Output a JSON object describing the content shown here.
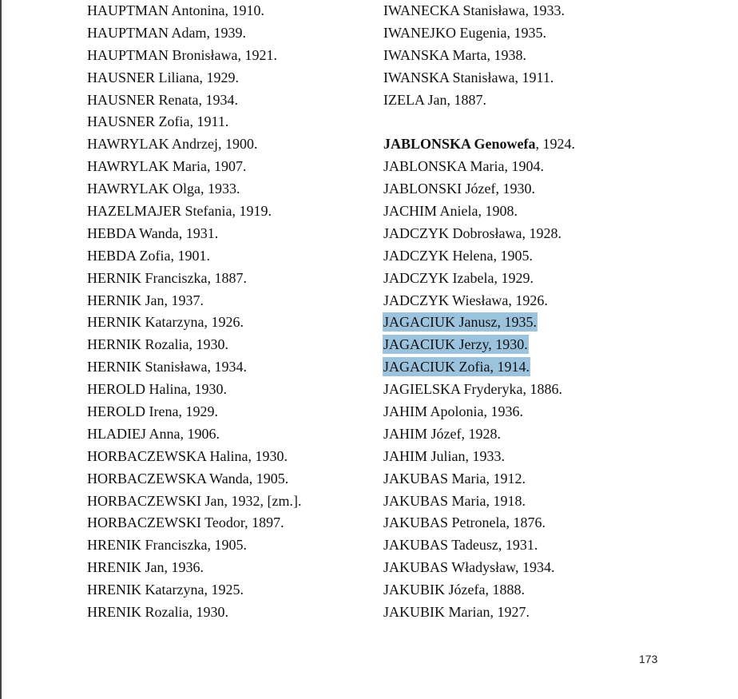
{
  "left_column": [
    "HAUPTMAN Antonina, 1910.",
    "HAUPTMAN Adam, 1939.",
    "HAUPTMAN Bronisława, 1921.",
    "HAUSNER Liliana, 1929.",
    "HAUSNER Renata, 1934.",
    "HAUSNER Zofia, 1911.",
    "HAWRYLAK Andrzej, 1900.",
    "HAWRYLAK Maria, 1907.",
    "HAWRYLAK Olga, 1933.",
    "HAZELMAJER Stefania, 1919.",
    "HEBDA Wanda, 1931.",
    "HEBDA Zofia, 1901.",
    "HERNIK Franciszka, 1887.",
    "HERNIK Jan, 1937.",
    "HERNIK Katarzyna, 1926.",
    "HERNIK Rozalia, 1930.",
    "HERNIK Stanisława, 1934.",
    "HEROLD Halina, 1930.",
    "HEROLD Irena, 1929.",
    "HLADIEJ Anna, 1906.",
    "HORBACZEWSKA Halina, 1930.",
    "HORBACZEWSKA Wanda, 1905.",
    "HORBACZEWSKI Jan, 1932, [zm.].",
    "HORBACZEWSKI Teodor, 1897.",
    "HRENIK Franciszka, 1905.",
    "HRENIK Jan, 1936.",
    "HRENIK Katarzyna, 1925.",
    "HRENIK Rozalia, 1930."
  ],
  "right_column": [
    {
      "text": "IWANECKA Stanisława, 1933."
    },
    {
      "text": "IWANEJKO Eugenia, 1935."
    },
    {
      "text": "IWANSKA Marta, 1938."
    },
    {
      "text": "IWANSKA Stanisława, 1911."
    },
    {
      "text": "IZELA Jan, 1887."
    },
    {
      "text": ""
    },
    {
      "bold": "JABLONSKA Genowefa",
      "text": ", 1924."
    },
    {
      "text": "JABLONSKA Maria, 1904."
    },
    {
      "text": "JABLONSKI Józef, 1930."
    },
    {
      "text": "JACHIM Aniela, 1908."
    },
    {
      "text": "JADCZYK Dobrosława, 1928."
    },
    {
      "text": "JADCZYK Helena, 1905."
    },
    {
      "text": "JADCZYK Izabela, 1929."
    },
    {
      "text": "JADCZYK Wiesława, 1926."
    },
    {
      "text": "JAGACIUK Janusz, 1935.",
      "highlighted": true
    },
    {
      "text": "JAGACIUK Jerzy, 1930.",
      "highlighted": true
    },
    {
      "text": "JAGACIUK Zofia, 1914.",
      "highlighted": true
    },
    {
      "text": "JAGIELSKA Fryderyka, 1886."
    },
    {
      "text": "JAHIM Apolonia, 1936."
    },
    {
      "text": "JAHIM Józef, 1928."
    },
    {
      "text": "JAHIM Julian, 1933."
    },
    {
      "text": "JAKUBAS Maria, 1912."
    },
    {
      "text": "JAKUBAS Maria, 1918."
    },
    {
      "text": "JAKUBAS Petronela, 1876."
    },
    {
      "text": "JAKUBAS Tadeusz, 1931."
    },
    {
      "text": "JAKUBAS Władysław, 1934."
    },
    {
      "text": "JAKUBIK Józefa, 1888."
    },
    {
      "text": "JAKUBIK Marian, 1927."
    }
  ],
  "page_number": "173",
  "colors": {
    "selection_highlight": "#9cc3de"
  }
}
